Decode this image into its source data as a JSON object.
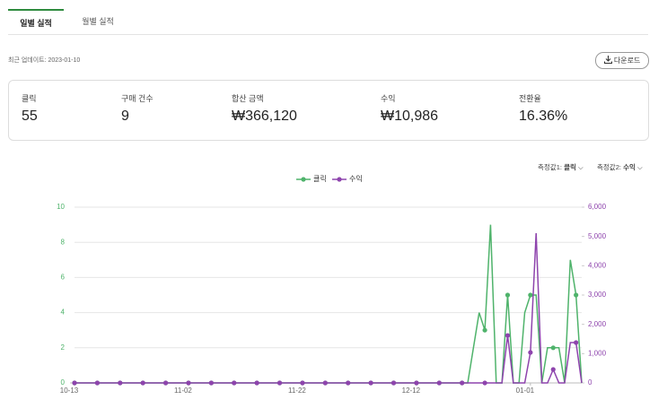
{
  "tabs": [
    "일별 실적",
    "월별 실적"
  ],
  "update_text": "최근 업데이트: 2023-01-10",
  "download": "다운로드",
  "stats": [
    {
      "label": "클릭",
      "value": "55"
    },
    {
      "label": "구매 건수",
      "value": "9"
    },
    {
      "label": "합산 금액",
      "value": "₩366,120"
    },
    {
      "label": "수익",
      "value": "₩10,986"
    },
    {
      "label": "전환율",
      "value": "16.36%"
    }
  ],
  "selectors": [
    {
      "label": "측정값1:",
      "value": "클릭"
    },
    {
      "label": "측정값2:",
      "value": "수익"
    }
  ],
  "chart_data": {
    "type": "line",
    "categories": [
      "10-13",
      null,
      null,
      null,
      null,
      null,
      null,
      null,
      null,
      null,
      null,
      null,
      null,
      null,
      null,
      null,
      null,
      null,
      null,
      null,
      "11-02",
      null,
      null,
      null,
      null,
      null,
      null,
      null,
      null,
      null,
      null,
      null,
      null,
      null,
      null,
      null,
      null,
      null,
      null,
      null,
      "11-22",
      null,
      null,
      null,
      null,
      null,
      null,
      null,
      null,
      null,
      null,
      null,
      null,
      null,
      null,
      null,
      null,
      null,
      null,
      null,
      "12-12",
      null,
      null,
      null,
      null,
      null,
      null,
      null,
      null,
      null,
      null,
      null,
      null,
      null,
      null,
      null,
      null,
      null,
      null,
      null,
      "01-01",
      null,
      null,
      null,
      null,
      null,
      null,
      null,
      null,
      null
    ],
    "series": [
      {
        "name": "클릭",
        "color": "#4fb36b",
        "values": [
          0,
          0,
          0,
          0,
          0,
          0,
          0,
          0,
          0,
          0,
          0,
          0,
          0,
          0,
          0,
          0,
          0,
          0,
          0,
          0,
          0,
          0,
          0,
          0,
          0,
          0,
          0,
          0,
          0,
          0,
          0,
          0,
          0,
          0,
          0,
          0,
          0,
          0,
          0,
          0,
          0,
          0,
          0,
          0,
          0,
          0,
          0,
          0,
          0,
          0,
          0,
          0,
          0,
          0,
          0,
          0,
          0,
          0,
          0,
          0,
          0,
          0,
          0,
          0,
          0,
          0,
          0,
          0,
          0,
          0,
          2,
          4,
          3,
          9,
          0,
          0,
          5,
          0,
          0,
          4,
          5,
          5,
          0,
          2,
          2,
          2,
          0,
          7,
          5,
          0
        ]
      },
      {
        "name": "수익",
        "color": "#8e44ad",
        "axis": "y2",
        "values": [
          0,
          0,
          0,
          0,
          0,
          0,
          0,
          0,
          0,
          0,
          0,
          0,
          0,
          0,
          0,
          0,
          0,
          0,
          0,
          0,
          0,
          0,
          0,
          0,
          0,
          0,
          0,
          0,
          0,
          0,
          0,
          0,
          0,
          0,
          0,
          0,
          0,
          0,
          0,
          0,
          0,
          0,
          0,
          0,
          0,
          0,
          0,
          0,
          0,
          0,
          0,
          0,
          0,
          0,
          0,
          0,
          0,
          0,
          0,
          0,
          0,
          0,
          0,
          0,
          0,
          0,
          0,
          0,
          0,
          0,
          0,
          0,
          0,
          0,
          0,
          0,
          1620,
          0,
          0,
          0,
          1040,
          5111,
          0,
          0,
          459,
          0,
          0,
          1378,
          1378,
          0
        ]
      }
    ],
    "ylim": [
      0,
      10
    ],
    "yticks": [
      0,
      2,
      4,
      6,
      8,
      10
    ],
    "y2lim": [
      0,
      6000
    ],
    "y2ticks": [
      0,
      {
        "value": 1000,
        "label": "1,000"
      },
      {
        "value": 2000,
        "label": "2,000"
      },
      {
        "value": 3000,
        "label": "3,000"
      },
      {
        "value": 4000,
        "label": "4,000"
      },
      {
        "value": 5000,
        "label": "5,000"
      },
      {
        "value": 6000,
        "label": "6,000"
      }
    ],
    "grid": true,
    "marker_every": 4
  }
}
